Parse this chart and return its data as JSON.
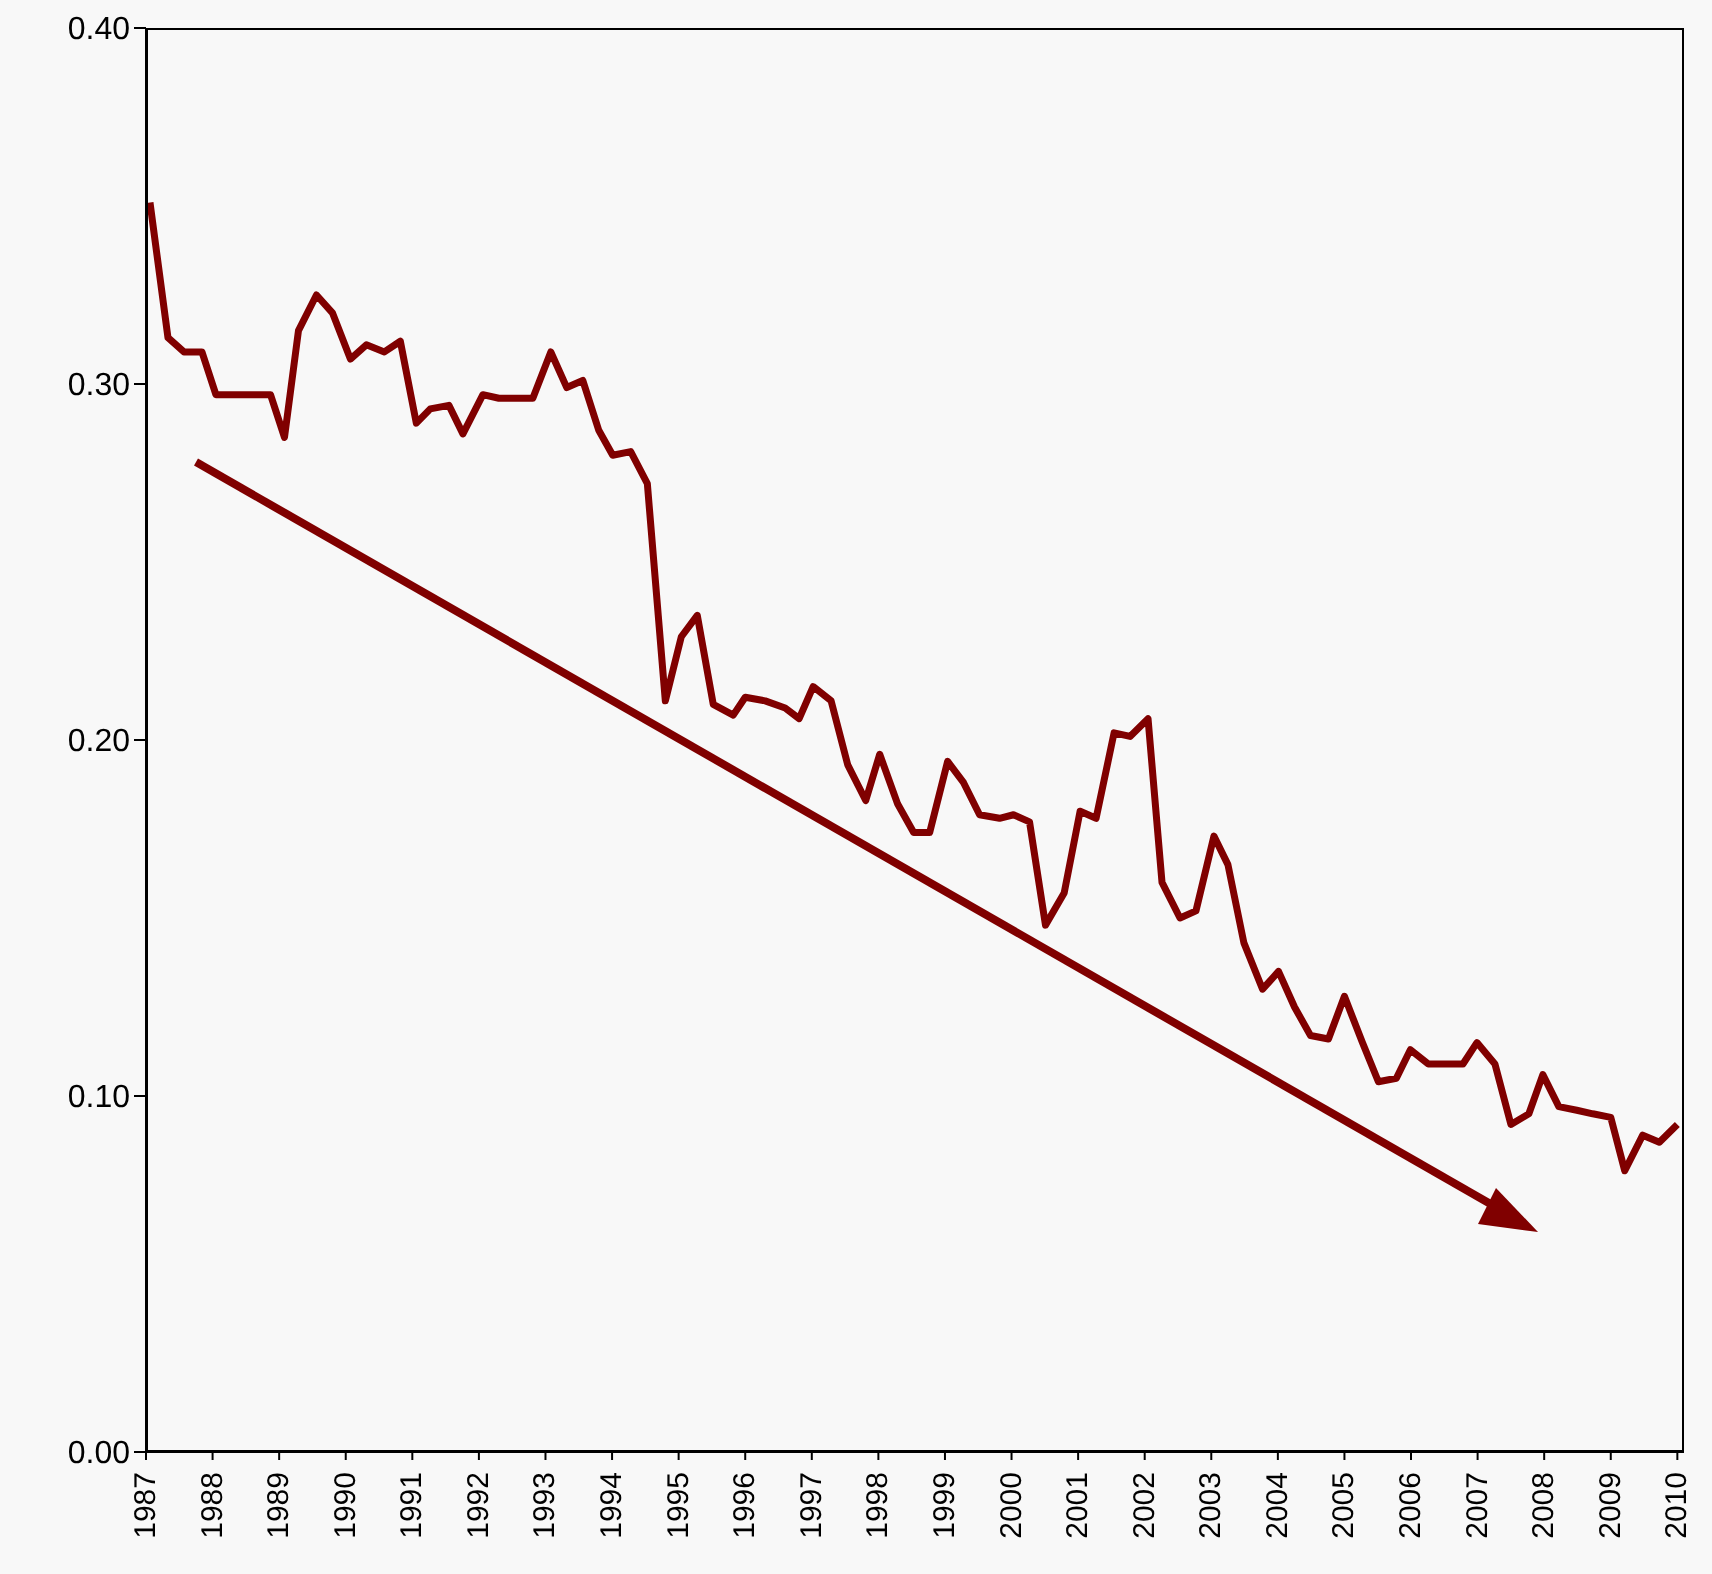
{
  "chart_data": {
    "type": "line",
    "x": [
      1987.06,
      1987.33,
      1987.57,
      1987.84,
      1988.05,
      1988.32,
      1988.6,
      1988.87,
      1989.08,
      1989.29,
      1989.56,
      1989.8,
      1990.07,
      1990.31,
      1990.58,
      1990.82,
      1991.06,
      1991.27,
      1991.55,
      1991.76,
      1992.06,
      1992.3,
      1992.57,
      1992.81,
      1993.08,
      1993.32,
      1993.56,
      1993.8,
      1994.01,
      1994.28,
      1994.53,
      1994.8,
      1995.04,
      1995.28,
      1995.52,
      1995.82,
      1996.0,
      1996.3,
      1996.6,
      1996.81,
      1997.02,
      1997.29,
      1997.54,
      1997.81,
      1998.02,
      1998.29,
      1998.53,
      1998.77,
      1999.04,
      1999.28,
      1999.52,
      1999.82,
      2000.03,
      2000.27,
      2000.51,
      2000.79,
      2001.03,
      2001.27,
      2001.54,
      2001.78,
      2002.05,
      2002.26,
      2002.53,
      2002.77,
      2003.04,
      2003.25,
      2003.49,
      2003.77,
      2004.01,
      2004.25,
      2004.49,
      2004.76,
      2005.0,
      2005.27,
      2005.51,
      2005.78,
      2005.99,
      2006.26,
      2006.5,
      2006.78,
      2006.99,
      2007.26,
      2007.5,
      2007.77,
      2007.98,
      2008.22,
      2008.49,
      2008.73,
      2009.0,
      2009.21,
      2009.48,
      2009.73,
      2010.0
    ],
    "series": [
      {
        "color": "#800000",
        "values": [
          0.351,
          0.313,
          0.309,
          0.309,
          0.297,
          0.297,
          0.297,
          0.297,
          0.285,
          0.315,
          0.325,
          0.32,
          0.307,
          0.311,
          0.309,
          0.312,
          0.289,
          0.293,
          0.294,
          0.286,
          0.297,
          0.296,
          0.296,
          0.296,
          0.309,
          0.299,
          0.301,
          0.287,
          0.28,
          0.281,
          0.272,
          0.211,
          0.229,
          0.235,
          0.21,
          0.207,
          0.212,
          0.211,
          0.209,
          0.206,
          0.215,
          0.211,
          0.193,
          0.183,
          0.196,
          0.182,
          0.174,
          0.174,
          0.194,
          0.188,
          0.179,
          0.178,
          0.179,
          0.177,
          0.148,
          0.157,
          0.18,
          0.178,
          0.202,
          0.201,
          0.206,
          0.16,
          0.15,
          0.152,
          0.173,
          0.165,
          0.143,
          0.13,
          0.135,
          0.125,
          0.117,
          0.116,
          0.128,
          0.115,
          0.104,
          0.105,
          0.113,
          0.109,
          0.109,
          0.109,
          0.115,
          0.109,
          0.092,
          0.095,
          0.106,
          0.097,
          0.096,
          0.095,
          0.094,
          0.079,
          0.089,
          0.087,
          0.092
        ]
      }
    ],
    "xlim": [
      1987,
      2010.1
    ],
    "xticks": [
      1987,
      1988,
      1989,
      1990,
      1991,
      1992,
      1993,
      1994,
      1995,
      1996,
      1997,
      1998,
      1999,
      2000,
      2001,
      2002,
      2003,
      2004,
      2005,
      2006,
      2007,
      2008,
      2009,
      2010
    ],
    "ylim": [
      0,
      0.4
    ],
    "yticks": [
      {
        "value": 0,
        "label": "0.00"
      },
      {
        "value": 0.1,
        "label": "0.10"
      },
      {
        "value": 0.2,
        "label": "0.20"
      },
      {
        "value": 0.3,
        "label": "0.30"
      },
      {
        "value": 0.4,
        "label": "0.40"
      }
    ],
    "grid": false,
    "legend": false,
    "marker": "none",
    "line_style": "solid"
  }
}
